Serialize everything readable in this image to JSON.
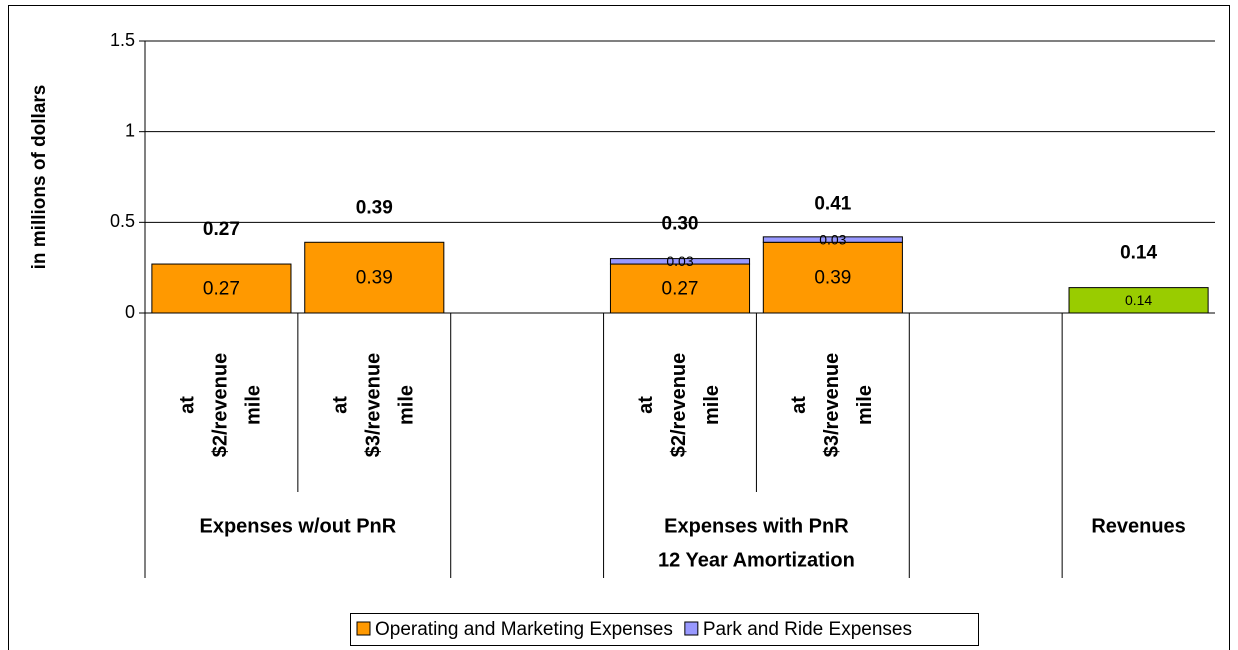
{
  "chart_data": {
    "type": "stacked_bar",
    "y_label": "in millions of dollars",
    "categories": [
      "at $2/revenue mile",
      "at $3/revenue mile",
      null,
      "at $2/revenue mile",
      "at $3/revenue mile",
      null,
      null
    ],
    "groups": [
      [
        "Expenses w/out PnR"
      ],
      [
        "Expenses with PnR",
        "12 Year Amortization"
      ],
      [
        "Revenues"
      ]
    ],
    "series": [
      {
        "name": "Operating and Marketing Expenses",
        "color": "#ff9900",
        "values": [
          0.27,
          0.39,
          null,
          0.27,
          0.39,
          null,
          null
        ]
      },
      {
        "name": "Park and Ride Expenses",
        "color": "#9999ff",
        "values": [
          null,
          null,
          null,
          0.03,
          0.03,
          null,
          null
        ]
      },
      {
        "color": "#99cc00",
        "values": [
          null,
          null,
          null,
          null,
          null,
          null,
          0.14
        ]
      }
    ],
    "totals": [
      0.27,
      0.39,
      null,
      0.3,
      0.41,
      null,
      0.14
    ],
    "total_labels": [
      "0.27",
      "0.39",
      null,
      "0.30",
      "0.41",
      null,
      "0.14"
    ],
    "ylim": [
      0,
      1.5
    ],
    "yticks": [
      0,
      0.5,
      1,
      1.5
    ],
    "grid": true
  }
}
